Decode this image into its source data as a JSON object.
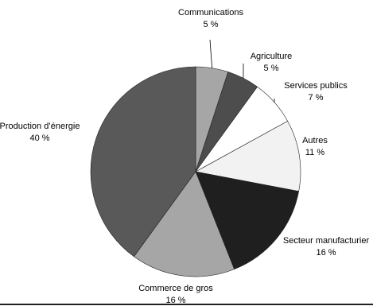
{
  "chart_data": {
    "type": "pie",
    "title": "",
    "start": "top",
    "direction": "clockwise",
    "slices": [
      {
        "label": "Communications",
        "value": 5,
        "value_label": "5 %",
        "color": "#a6a6a6"
      },
      {
        "label": "Agriculture",
        "value": 5,
        "value_label": "5 %",
        "color": "#4d4d4d"
      },
      {
        "label": "Services publics",
        "value": 7,
        "value_label": "7 %",
        "color": "#ffffff"
      },
      {
        "label": "Autres",
        "value": 11,
        "value_label": "11 %",
        "color": "#f2f2f2"
      },
      {
        "label": "Secteur manufacturier",
        "value": 16,
        "value_label": "16 %",
        "color": "#1f1f1f"
      },
      {
        "label": "Commerce de gros",
        "value": 16,
        "value_label": "16 %",
        "color": "#a6a6a6"
      },
      {
        "label": "Production d’énergie",
        "value": 40,
        "value_label": "40 %",
        "color": "#595959"
      }
    ]
  }
}
